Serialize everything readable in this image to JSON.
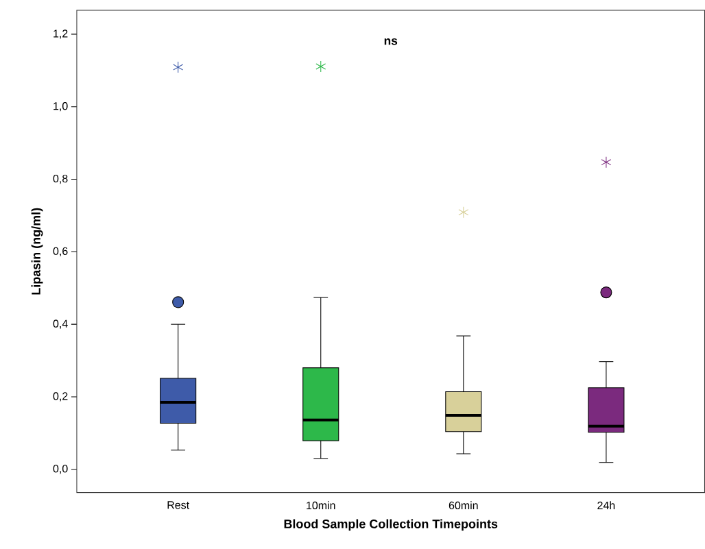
{
  "chart_data": {
    "type": "box",
    "xlabel": "Blood Sample Collection Timepoints",
    "ylabel": "Lipasin (ng/ml)",
    "annotations": [
      "ns"
    ],
    "categories": [
      "Rest",
      "10min",
      "60min",
      "24h"
    ],
    "colors": [
      "#3e5ba9",
      "#2db84a",
      "#d8d09a",
      "#7b2a7e"
    ],
    "boxes": [
      {
        "low": 0.053,
        "q1": 0.127,
        "median": 0.185,
        "q3": 0.251,
        "high": 0.4,
        "outliers": [
          0.461,
          1.109
        ]
      },
      {
        "low": 0.03,
        "q1": 0.079,
        "median": 0.136,
        "q3": 0.28,
        "high": 0.474,
        "outliers": [
          1.111
        ]
      },
      {
        "low": 0.043,
        "q1": 0.104,
        "median": 0.149,
        "q3": 0.214,
        "high": 0.368,
        "outliers": [
          0.709
        ]
      },
      {
        "low": 0.019,
        "q1": 0.102,
        "median": 0.119,
        "q3": 0.225,
        "high": 0.297,
        "outliers": [
          0.488,
          0.847
        ]
      }
    ],
    "ylim": [
      -0.064,
      1.266
    ],
    "yticks": [
      {
        "value": 0,
        "label": "0,0"
      },
      {
        "value": 0.2,
        "label": "0,2"
      },
      {
        "value": 0.4,
        "label": "0,4"
      },
      {
        "value": 0.6,
        "label": "0,6"
      },
      {
        "value": 0.8,
        "label": "0,8"
      },
      {
        "value": 1.0,
        "label": "1,0"
      },
      {
        "value": 1.2,
        "label": "1,2"
      }
    ]
  }
}
